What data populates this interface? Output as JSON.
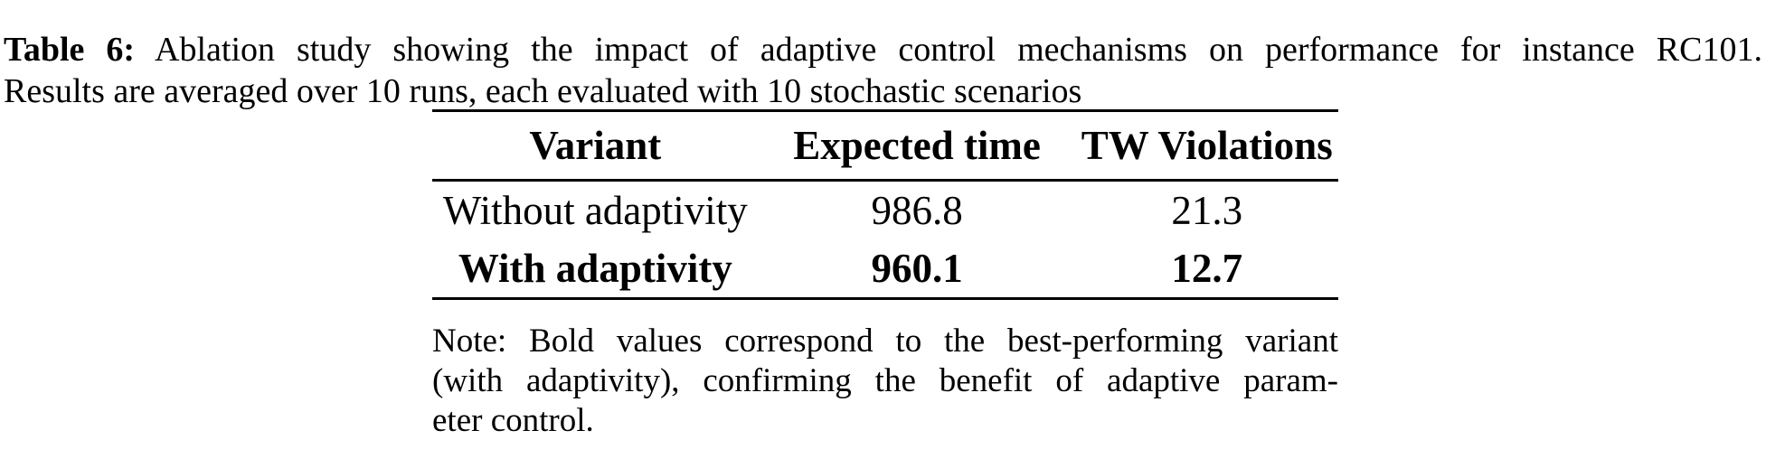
{
  "caption": {
    "label": "Table 6:",
    "line1_rest": "Ablation study showing the impact of adaptive control mechanisms on performance for instance RC101.",
    "line2": "Results are averaged over 10 runs, each evaluated with 10 stochastic scenarios"
  },
  "table": {
    "columns": [
      "Variant",
      "Expected time",
      "TW Violations"
    ],
    "rows": [
      {
        "cells": [
          "Without adaptivity",
          "986.8",
          "21.3"
        ],
        "bold": false
      },
      {
        "cells": [
          "With adaptivity",
          "960.1",
          "12.7"
        ],
        "bold": true
      }
    ]
  },
  "note": {
    "lines": [
      "Note: Bold values correspond to the best-performing variant",
      "(with adaptivity), confirming the benefit of adaptive param-",
      "eter control."
    ]
  },
  "colors": {
    "text": "#000000",
    "background": "#ffffff",
    "rule": "#000000"
  }
}
